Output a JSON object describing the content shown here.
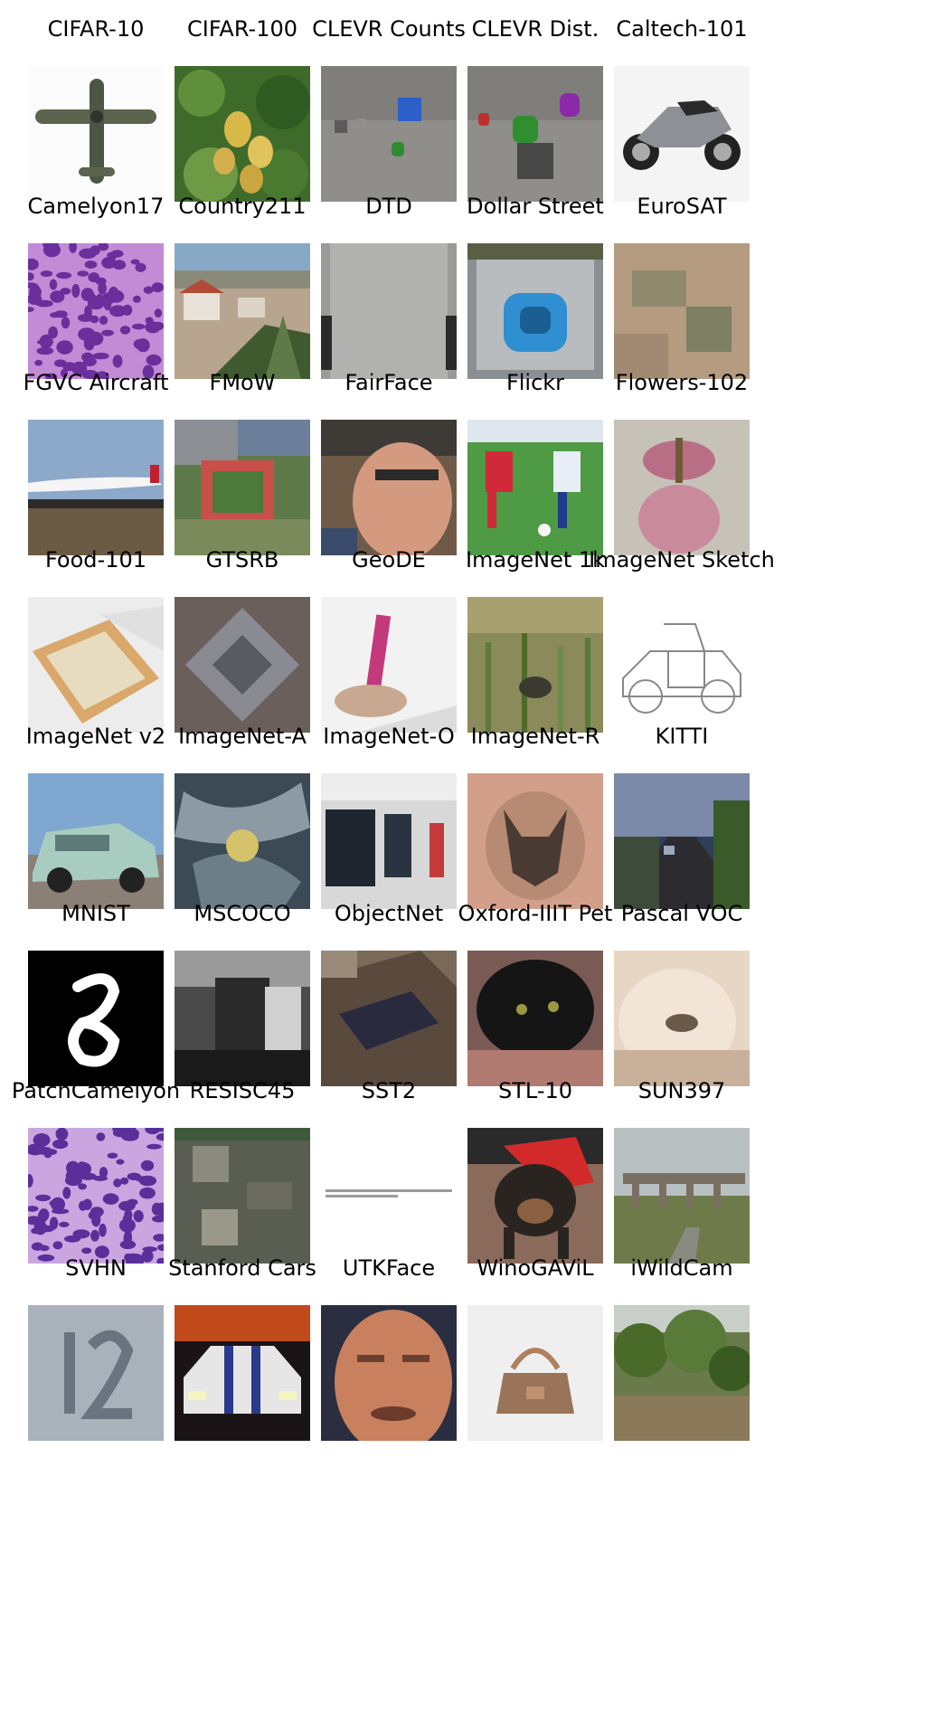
{
  "figure": {
    "items": [
      {
        "label": "CIFAR-10",
        "icon": "airplane-thumbnail",
        "pic": "airplane"
      },
      {
        "label": "CIFAR-100",
        "icon": "pears-thumbnail",
        "pic": "pears"
      },
      {
        "label": "CLEVR Counts",
        "icon": "clevr-shapes-thumbnail",
        "pic": "clevr1"
      },
      {
        "label": "CLEVR Dist.",
        "icon": "clevr-shapes-thumbnail",
        "pic": "clevr2"
      },
      {
        "label": "Caltech-101",
        "icon": "motorcycle-thumbnail",
        "pic": "motorbike"
      },
      {
        "label": "Camelyon17",
        "icon": "histology-tissue-thumbnail",
        "pic": "tissue1"
      },
      {
        "label": "Country211",
        "icon": "town-landscape-thumbnail",
        "pic": "town"
      },
      {
        "label": "DTD",
        "icon": "fabric-texture-thumbnail",
        "pic": "fabric"
      },
      {
        "label": "Dollar Street",
        "icon": "squat-toilet-thumbnail",
        "pic": "toilet"
      },
      {
        "label": "EuroSAT",
        "icon": "satellite-field-thumbnail",
        "pic": "satellite"
      },
      {
        "label": "FGVC Aircraft",
        "icon": "airliner-thumbnail",
        "pic": "airliner"
      },
      {
        "label": "FMoW",
        "icon": "aerial-stadium-thumbnail",
        "pic": "aerial"
      },
      {
        "label": "FairFace",
        "icon": "face-thumbnail",
        "pic": "face1"
      },
      {
        "label": "Flickr",
        "icon": "soccer-players-thumbnail",
        "pic": "soccer"
      },
      {
        "label": "Flowers-102",
        "icon": "orchid-flower-thumbnail",
        "pic": "orchid"
      },
      {
        "label": "Food-101",
        "icon": "bread-food-thumbnail",
        "pic": "food"
      },
      {
        "label": "GTSRB",
        "icon": "traffic-sign-thumbnail",
        "pic": "sign"
      },
      {
        "label": "GeoDE",
        "icon": "hand-candle-thumbnail",
        "pic": "candle"
      },
      {
        "label": "ImageNet 1k",
        "icon": "grass-thumbnail",
        "pic": "grass"
      },
      {
        "label": "ImageNet Sketch",
        "icon": "car-sketch-thumbnail",
        "pic": "sketch"
      },
      {
        "label": "ImageNet v2",
        "icon": "minivan-thumbnail",
        "pic": "minivan"
      },
      {
        "label": "ImageNet-A",
        "icon": "abstract-objects-thumbnail",
        "pic": "abstract"
      },
      {
        "label": "ImageNet-O",
        "icon": "server-room-thumbnail",
        "pic": "server"
      },
      {
        "label": "ImageNet-R",
        "icon": "dog-tattoo-thumbnail",
        "pic": "tattoo"
      },
      {
        "label": "KITTI",
        "icon": "road-scene-thumbnail",
        "pic": "road"
      },
      {
        "label": "MNIST",
        "icon": "handwritten-digit-thumbnail",
        "pic": "mnist"
      },
      {
        "label": "MSCOCO",
        "icon": "grayscale-person-thumbnail",
        "pic": "mscoco"
      },
      {
        "label": "ObjectNet",
        "icon": "drawer-thumbnail",
        "pic": "drawer"
      },
      {
        "label": "Oxford-IIIT Pet",
        "icon": "black-cat-thumbnail",
        "pic": "cat"
      },
      {
        "label": "Pascal VOC",
        "icon": "dog-fur-thumbnail",
        "pic": "furdog"
      },
      {
        "label": "PatchCamelyon",
        "icon": "histology-tissue-thumbnail",
        "pic": "tissue2"
      },
      {
        "label": "RESISC45",
        "icon": "aerial-city-thumbnail",
        "pic": "aerialcity"
      },
      {
        "label": "SST2",
        "icon": "text-line-thumbnail",
        "pic": "text"
      },
      {
        "label": "STL-10",
        "icon": "dog-thumbnail",
        "pic": "dog"
      },
      {
        "label": "SUN397",
        "icon": "aqueduct-thumbnail",
        "pic": "aqueduct"
      },
      {
        "label": "SVHN",
        "icon": "house-number-thumbnail",
        "pic": "svhn"
      },
      {
        "label": "Stanford Cars",
        "icon": "sports-car-thumbnail",
        "pic": "car"
      },
      {
        "label": "UTKFace",
        "icon": "face-thumbnail",
        "pic": "face2"
      },
      {
        "label": "WinoGAViL",
        "icon": "handbag-thumbnail",
        "pic": "handbag"
      },
      {
        "label": "iWildCam",
        "icon": "forest-thumbnail",
        "pic": "forest"
      }
    ]
  }
}
